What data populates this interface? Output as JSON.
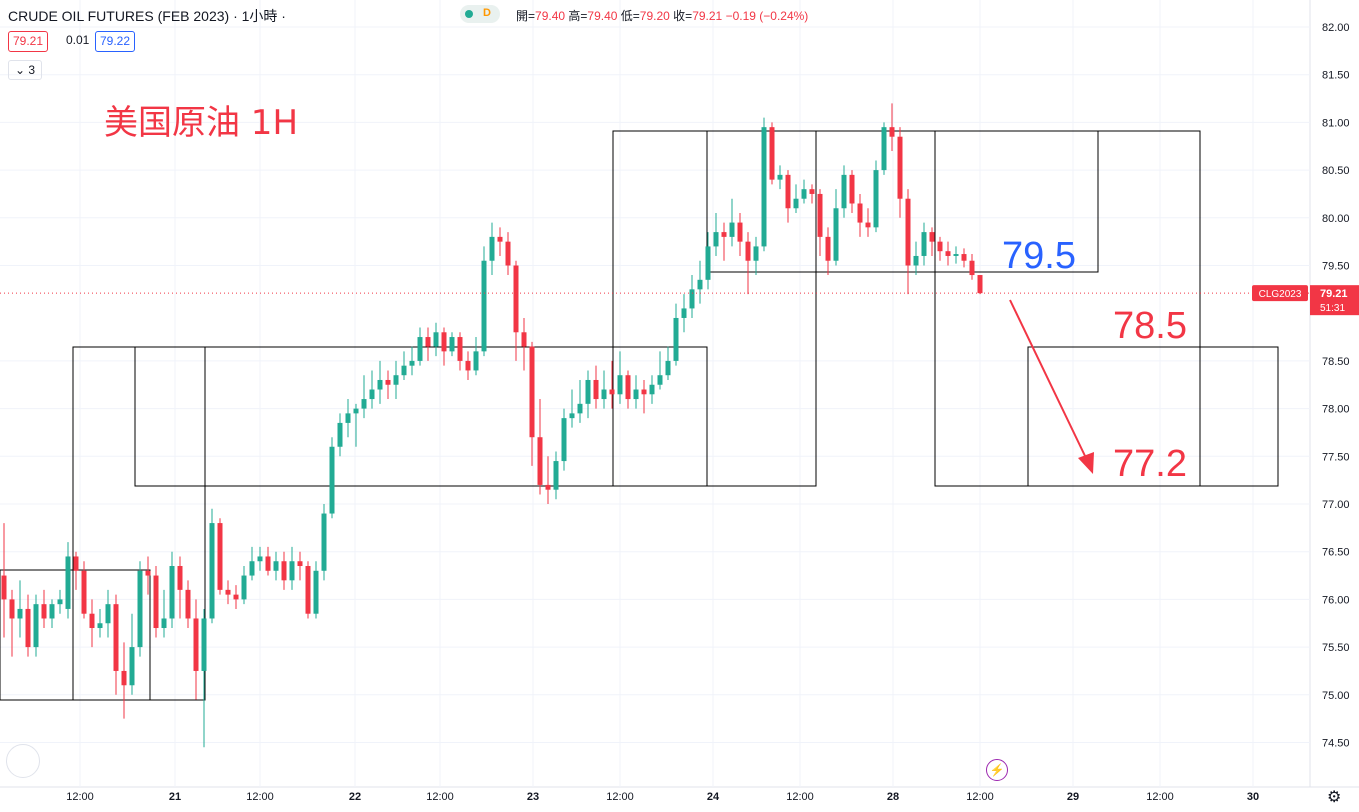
{
  "header": {
    "title": "CRUDE OIL FUTURES (FEB 2023) · 1小時 ·",
    "status_letter": "D",
    "ohlc": {
      "open_label": "開=",
      "open": "79.40",
      "high_label": "高=",
      "high": "79.40",
      "low_label": "低=",
      "low": "79.20",
      "close_label": "收=",
      "close": "79.21",
      "change": "−0.19 (−0.24%)"
    },
    "sell_price": "79.21",
    "spread": "0.01",
    "buy_price": "79.22",
    "indicator_count": "3"
  },
  "colors": {
    "up": "#22ab94",
    "down": "#f23645",
    "blue": "#2962ff",
    "grid": "#f0f3fa"
  },
  "chart_data": {
    "type": "candlestick",
    "title": "美国原油 1H",
    "symbol_badge": "CLG2023",
    "last_price": "79.21",
    "countdown": "51:31",
    "ylim": [
      74.25,
      82.1
    ],
    "y_ticks": [
      "82.00",
      "81.50",
      "81.00",
      "80.50",
      "80.00",
      "79.50",
      "78.50",
      "78.00",
      "77.50",
      "77.00",
      "76.50",
      "76.00",
      "75.50",
      "75.00",
      "74.50"
    ],
    "x_ticks": [
      "12:00",
      "21",
      "12:00",
      "22",
      "12:00",
      "23",
      "12:00",
      "24",
      "12:00",
      "28",
      "12:00",
      "29",
      "12:00",
      "30"
    ],
    "annotations": [
      "79.5",
      "78.5",
      "77.2"
    ],
    "candles": [
      [
        76.25,
        76.0,
        76.8,
        75.6
      ],
      [
        76.0,
        75.8,
        76.1,
        75.4
      ],
      [
        75.8,
        75.9,
        76.2,
        75.6
      ],
      [
        75.9,
        75.5,
        76.05,
        75.4
      ],
      [
        75.5,
        75.95,
        76.05,
        75.4
      ],
      [
        75.95,
        75.8,
        76.1,
        75.7
      ],
      [
        75.8,
        75.95,
        76.0,
        75.7
      ],
      [
        75.95,
        76.0,
        76.1,
        75.85
      ],
      [
        75.9,
        76.45,
        76.6,
        75.8
      ],
      [
        76.45,
        76.3,
        76.5,
        76.1
      ],
      [
        76.3,
        75.85,
        76.4,
        75.8
      ],
      [
        75.85,
        75.7,
        76.0,
        75.5
      ],
      [
        75.7,
        75.75,
        75.9,
        75.6
      ],
      [
        75.75,
        75.95,
        76.1,
        75.6
      ],
      [
        75.95,
        75.25,
        76.05,
        75.0
      ],
      [
        75.25,
        75.1,
        75.55,
        74.75
      ],
      [
        75.1,
        75.5,
        75.85,
        75.0
      ],
      [
        75.5,
        76.3,
        76.4,
        75.4
      ],
      [
        76.3,
        76.25,
        76.45,
        76.05
      ],
      [
        76.25,
        75.7,
        76.35,
        75.6
      ],
      [
        75.7,
        75.8,
        76.1,
        75.6
      ],
      [
        75.8,
        76.35,
        76.5,
        75.7
      ],
      [
        76.35,
        76.1,
        76.45,
        75.8
      ],
      [
        76.1,
        75.8,
        76.2,
        75.7
      ],
      [
        75.8,
        75.25,
        76.0,
        74.95
      ],
      [
        75.25,
        75.8,
        75.9,
        74.45
      ],
      [
        75.8,
        76.8,
        76.95,
        75.75
      ],
      [
        76.8,
        76.1,
        76.85,
        76.05
      ],
      [
        76.1,
        76.05,
        76.2,
        75.95
      ],
      [
        76.05,
        76.0,
        76.15,
        75.9
      ],
      [
        76.0,
        76.25,
        76.35,
        75.95
      ],
      [
        76.25,
        76.4,
        76.55,
        76.2
      ],
      [
        76.4,
        76.45,
        76.55,
        76.3
      ],
      [
        76.45,
        76.3,
        76.55,
        76.25
      ],
      [
        76.3,
        76.4,
        76.5,
        76.2
      ],
      [
        76.4,
        76.2,
        76.5,
        76.1
      ],
      [
        76.2,
        76.4,
        76.55,
        76.1
      ],
      [
        76.4,
        76.35,
        76.5,
        76.2
      ],
      [
        76.35,
        75.85,
        76.4,
        75.8
      ],
      [
        75.85,
        76.3,
        76.4,
        75.8
      ],
      [
        76.3,
        76.9,
        77.0,
        76.2
      ],
      [
        76.9,
        77.6,
        77.7,
        76.85
      ],
      [
        77.6,
        77.85,
        77.95,
        77.5
      ],
      [
        77.85,
        77.95,
        78.1,
        77.7
      ],
      [
        77.95,
        78.0,
        78.05,
        77.6
      ],
      [
        78.0,
        78.1,
        78.35,
        77.9
      ],
      [
        78.1,
        78.2,
        78.4,
        78.0
      ],
      [
        78.2,
        78.3,
        78.5,
        78.05
      ],
      [
        78.3,
        78.25,
        78.4,
        78.1
      ],
      [
        78.25,
        78.35,
        78.5,
        78.1
      ],
      [
        78.35,
        78.45,
        78.6,
        78.3
      ],
      [
        78.45,
        78.5,
        78.65,
        78.35
      ],
      [
        78.5,
        78.75,
        78.85,
        78.45
      ],
      [
        78.75,
        78.65,
        78.85,
        78.5
      ],
      [
        78.65,
        78.8,
        78.9,
        78.55
      ],
      [
        78.8,
        78.6,
        78.85,
        78.45
      ],
      [
        78.6,
        78.75,
        78.8,
        78.55
      ],
      [
        78.75,
        78.5,
        78.8,
        78.4
      ],
      [
        78.5,
        78.4,
        78.6,
        78.3
      ],
      [
        78.4,
        78.6,
        78.75,
        78.35
      ],
      [
        78.6,
        79.55,
        79.7,
        78.55
      ],
      [
        79.55,
        79.8,
        79.95,
        79.4
      ],
      [
        79.8,
        79.75,
        79.9,
        79.6
      ],
      [
        79.75,
        79.5,
        79.85,
        79.4
      ],
      [
        79.5,
        78.8,
        79.55,
        78.5
      ],
      [
        78.8,
        78.65,
        78.95,
        78.4
      ],
      [
        78.65,
        77.7,
        78.7,
        77.4
      ],
      [
        77.7,
        77.2,
        78.1,
        77.1
      ],
      [
        77.2,
        77.15,
        77.5,
        77.0
      ],
      [
        77.15,
        77.45,
        77.55,
        77.05
      ],
      [
        77.45,
        77.9,
        78.0,
        77.35
      ],
      [
        77.9,
        77.95,
        78.2,
        77.8
      ],
      [
        77.95,
        78.05,
        78.3,
        77.85
      ],
      [
        78.05,
        78.3,
        78.4,
        77.9
      ],
      [
        78.3,
        78.1,
        78.45,
        78.0
      ],
      [
        78.1,
        78.2,
        78.4,
        78.0
      ],
      [
        78.2,
        78.15,
        78.5,
        78.0
      ],
      [
        78.15,
        78.35,
        78.6,
        78.05
      ],
      [
        78.35,
        78.1,
        78.4,
        78.0
      ],
      [
        78.1,
        78.2,
        78.35,
        78.0
      ],
      [
        78.2,
        78.15,
        78.3,
        77.95
      ],
      [
        78.15,
        78.25,
        78.35,
        78.05
      ],
      [
        78.25,
        78.35,
        78.6,
        78.2
      ],
      [
        78.35,
        78.5,
        78.65,
        78.3
      ],
      [
        78.5,
        78.95,
        79.1,
        78.45
      ],
      [
        78.95,
        79.05,
        79.2,
        78.8
      ],
      [
        79.05,
        79.25,
        79.4,
        78.95
      ],
      [
        79.25,
        79.35,
        79.55,
        79.1
      ],
      [
        79.35,
        79.7,
        79.85,
        79.25
      ],
      [
        79.7,
        79.85,
        80.05,
        79.6
      ],
      [
        79.85,
        79.8,
        79.95,
        79.55
      ],
      [
        79.8,
        79.95,
        80.2,
        79.7
      ],
      [
        79.95,
        79.75,
        80.05,
        79.6
      ],
      [
        79.75,
        79.55,
        79.85,
        79.2
      ],
      [
        79.55,
        79.7,
        79.8,
        79.4
      ],
      [
        79.7,
        80.95,
        81.05,
        79.65
      ],
      [
        80.95,
        80.4,
        81.0,
        80.35
      ],
      [
        80.4,
        80.45,
        80.55,
        80.3
      ],
      [
        80.45,
        80.1,
        80.5,
        79.95
      ],
      [
        80.1,
        80.2,
        80.35,
        80.05
      ],
      [
        80.2,
        80.3,
        80.4,
        80.15
      ],
      [
        80.3,
        80.25,
        80.35,
        80.15
      ],
      [
        80.25,
        79.8,
        80.3,
        79.6
      ],
      [
        79.8,
        79.55,
        79.9,
        79.4
      ],
      [
        79.55,
        80.1,
        80.3,
        79.5
      ],
      [
        80.1,
        80.45,
        80.55,
        80.0
      ],
      [
        80.45,
        80.15,
        80.5,
        80.05
      ],
      [
        80.15,
        79.95,
        80.25,
        79.8
      ],
      [
        79.95,
        79.9,
        80.1,
        79.8
      ],
      [
        79.9,
        80.5,
        80.6,
        79.85
      ],
      [
        80.5,
        80.95,
        81.0,
        80.45
      ],
      [
        80.95,
        80.85,
        81.2,
        80.7
      ],
      [
        80.85,
        80.2,
        80.95,
        80.0
      ],
      [
        80.2,
        79.5,
        80.3,
        79.2
      ],
      [
        79.5,
        79.6,
        79.75,
        79.4
      ],
      [
        79.6,
        79.85,
        79.95,
        79.5
      ],
      [
        79.85,
        79.75,
        79.9,
        79.6
      ],
      [
        79.75,
        79.65,
        79.8,
        79.55
      ],
      [
        79.65,
        79.6,
        79.75,
        79.5
      ],
      [
        79.6,
        79.62,
        79.7,
        79.52
      ],
      [
        79.62,
        79.55,
        79.68,
        79.48
      ],
      [
        79.55,
        79.4,
        79.62,
        79.35
      ],
      [
        79.4,
        79.21,
        79.4,
        79.2
      ]
    ]
  }
}
